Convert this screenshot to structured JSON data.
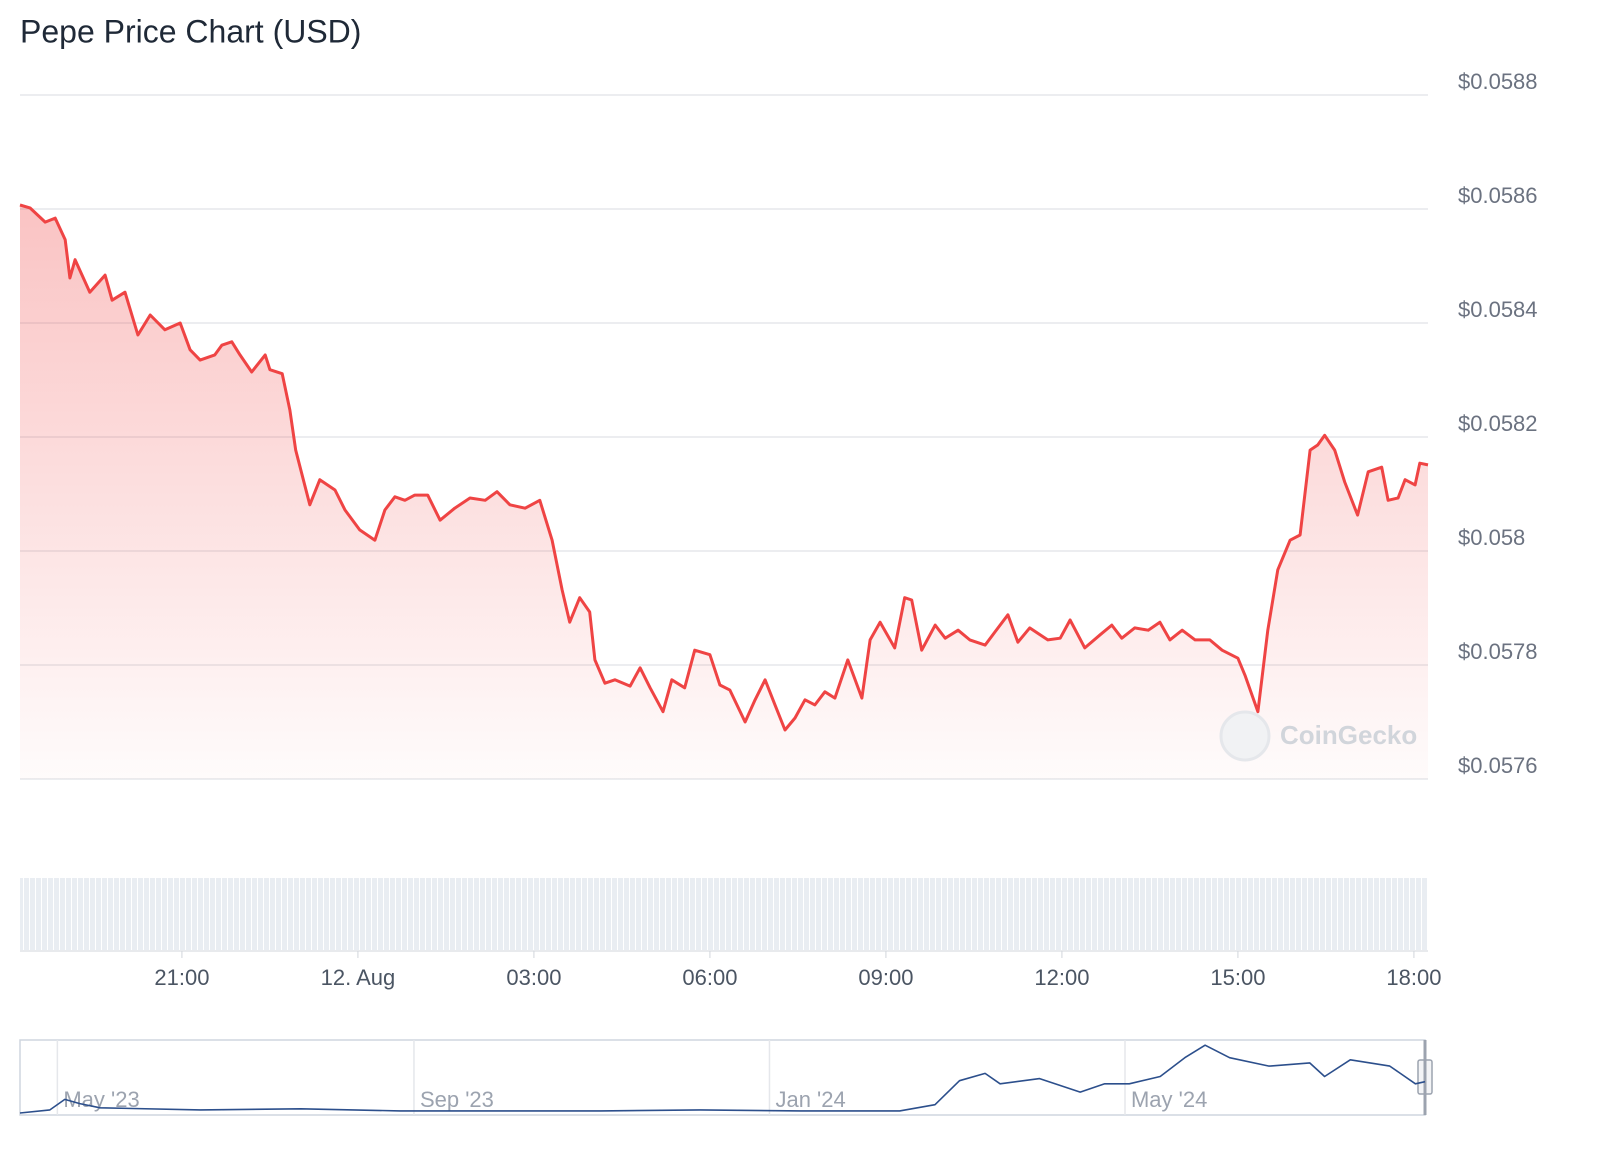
{
  "chart_data": [
    {
      "type": "line",
      "title": "Pepe Price Chart (USD)",
      "color": "#ef4444",
      "watermark": "CoinGecko",
      "grid": true,
      "xlim": [
        -5.76,
        18.24
      ],
      "xticks": [
        {
          "value": -3,
          "label": "21:00"
        },
        {
          "value": 0,
          "label": "12. Aug"
        },
        {
          "value": 3,
          "label": "03:00"
        },
        {
          "value": 6,
          "label": "06:00"
        },
        {
          "value": 9,
          "label": "09:00"
        },
        {
          "value": 12,
          "label": "12:00"
        },
        {
          "value": 15,
          "label": "15:00"
        },
        {
          "value": 18,
          "label": "18:00"
        }
      ],
      "ylim": [
        0.0576,
        0.0588
      ],
      "yticks": [
        {
          "value": 0.0576,
          "label": "$0.0576"
        },
        {
          "value": 0.0578,
          "label": "$0.0578"
        },
        {
          "value": 0.058,
          "label": "$0.058"
        },
        {
          "value": 0.0582,
          "label": "$0.0582"
        },
        {
          "value": 0.0584,
          "label": "$0.0584"
        },
        {
          "value": 0.0586,
          "label": "$0.0586"
        },
        {
          "value": 0.0588,
          "label": "$0.0588"
        }
      ],
      "x": [
        -5.76,
        -5.59,
        -5.33,
        -5.16,
        -4.99,
        -4.91,
        -4.82,
        -4.57,
        -4.31,
        -4.19,
        -3.97,
        -3.75,
        -3.54,
        -3.29,
        -3.03,
        -2.86,
        -2.69,
        -2.44,
        -2.32,
        -2.15,
        -2.01,
        -1.81,
        -1.58,
        -1.5,
        -1.29,
        -1.16,
        -1.06,
        -0.82,
        -0.65,
        -0.39,
        -0.22,
        0.03,
        0.29,
        0.46,
        0.63,
        0.8,
        0.97,
        1.19,
        1.4,
        1.65,
        1.91,
        2.17,
        2.37,
        2.59,
        2.85,
        3.1,
        3.31,
        3.48,
        3.61,
        3.78,
        3.95,
        4.04,
        4.21,
        4.38,
        4.64,
        4.81,
        4.98,
        5.2,
        5.35,
        5.57,
        5.74,
        6.0,
        6.17,
        6.34,
        6.6,
        6.77,
        6.94,
        7.11,
        7.28,
        7.45,
        7.62,
        7.79,
        7.96,
        8.13,
        8.35,
        8.59,
        8.73,
        8.9,
        9.15,
        9.32,
        9.44,
        9.61,
        9.84,
        10.01,
        10.23,
        10.43,
        10.69,
        10.86,
        11.08,
        11.25,
        11.45,
        11.76,
        11.97,
        12.14,
        12.39,
        12.65,
        12.85,
        13.02,
        13.24,
        13.47,
        13.67,
        13.84,
        14.05,
        14.27,
        14.52,
        14.73,
        15.0,
        15.12,
        15.34,
        15.51,
        15.68,
        15.89,
        16.06,
        16.23,
        16.36,
        16.48,
        16.65,
        16.82,
        17.04,
        17.22,
        17.45,
        17.56,
        17.73,
        17.85,
        18.02,
        18.1,
        18.24
      ],
      "values": [
        0.058607,
        0.058602,
        0.058577,
        0.058584,
        0.058546,
        0.058479,
        0.058511,
        0.058454,
        0.058484,
        0.05844,
        0.058454,
        0.058379,
        0.058414,
        0.058388,
        0.0584,
        0.058353,
        0.058335,
        0.058344,
        0.058361,
        0.058367,
        0.058344,
        0.058314,
        0.058344,
        0.058318,
        0.058311,
        0.058247,
        0.058177,
        0.058081,
        0.058125,
        0.058107,
        0.058072,
        0.058037,
        0.058019,
        0.058072,
        0.058095,
        0.058089,
        0.058098,
        0.058098,
        0.058054,
        0.058075,
        0.058093,
        0.058089,
        0.058104,
        0.058081,
        0.058075,
        0.058089,
        0.058019,
        0.057932,
        0.057875,
        0.057918,
        0.057893,
        0.057809,
        0.057768,
        0.057774,
        0.057763,
        0.057795,
        0.05776,
        0.057718,
        0.057774,
        0.05776,
        0.057826,
        0.057818,
        0.057765,
        0.057756,
        0.0577,
        0.057739,
        0.057774,
        0.05773,
        0.057686,
        0.057707,
        0.057739,
        0.05773,
        0.057753,
        0.057742,
        0.057809,
        0.057742,
        0.057844,
        0.057875,
        0.05783,
        0.057918,
        0.057914,
        0.057826,
        0.05787,
        0.057847,
        0.057861,
        0.057844,
        0.057835,
        0.057858,
        0.057888,
        0.05784,
        0.057865,
        0.057844,
        0.057847,
        0.057879,
        0.05783,
        0.057853,
        0.05787,
        0.057847,
        0.057865,
        0.057861,
        0.057875,
        0.057844,
        0.057861,
        0.057844,
        0.057844,
        0.057826,
        0.057812,
        0.057782,
        0.057718,
        0.057861,
        0.057967,
        0.058019,
        0.058028,
        0.058177,
        0.058186,
        0.058203,
        0.058177,
        0.058121,
        0.058063,
        0.058139,
        0.058147,
        0.058089,
        0.058093,
        0.058125,
        0.058116,
        0.058154,
        0.058151
      ]
    },
    {
      "type": "line",
      "color": "#2c4f8c",
      "xlim": [
        2023.298,
        2024.614
      ],
      "xticks": [
        {
          "value": 2023.333,
          "label": "May '23"
        },
        {
          "value": 2023.667,
          "label": "Sep '23"
        },
        {
          "value": 2024.0,
          "label": "Jan '24"
        },
        {
          "value": 2024.333,
          "label": "May '24"
        }
      ],
      "ylim": [
        0,
        0.14
      ],
      "x": [
        2023.298,
        2023.326,
        2023.34,
        2023.354,
        2023.373,
        2023.467,
        2023.561,
        2023.654,
        2023.748,
        2023.842,
        2023.935,
        2024.029,
        2024.122,
        2024.155,
        2024.178,
        2024.202,
        2024.216,
        2024.253,
        2024.291,
        2024.314,
        2024.337,
        2024.366,
        2024.389,
        2024.408,
        2024.431,
        2024.468,
        2024.506,
        2024.52,
        2024.544,
        2024.581,
        2024.605,
        2024.614
      ],
      "values": [
        0.0,
        0.006,
        0.026,
        0.018,
        0.01,
        0.006,
        0.008,
        0.004,
        0.004,
        0.004,
        0.006,
        0.004,
        0.004,
        0.016,
        0.062,
        0.076,
        0.056,
        0.066,
        0.04,
        0.056,
        0.056,
        0.07,
        0.106,
        0.13,
        0.106,
        0.09,
        0.096,
        0.07,
        0.102,
        0.09,
        0.056,
        0.06
      ]
    }
  ]
}
